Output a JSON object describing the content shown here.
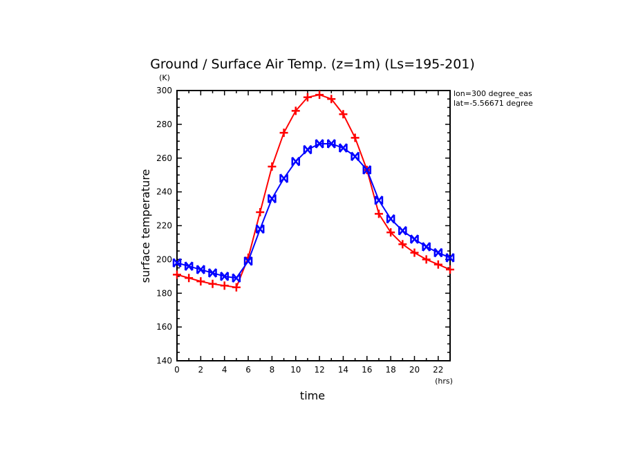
{
  "chart_data": {
    "type": "line",
    "title": "Ground / Surface Air Temp. (z=1m) (Ls=195-201)",
    "xlabel": "time",
    "xunit": "(hrs)",
    "ylabel": "surface temperature",
    "yunit": "(K)",
    "annotations": [
      "lon=300 degree_eas",
      "lat=-5.56671 degree"
    ],
    "xlim": [
      0,
      23
    ],
    "ylim": [
      140,
      300
    ],
    "xticks": [
      0,
      2,
      4,
      6,
      8,
      10,
      12,
      14,
      16,
      18,
      20,
      22
    ],
    "yticks": [
      140,
      160,
      180,
      200,
      220,
      240,
      260,
      280,
      300
    ],
    "grid": false,
    "x": [
      0,
      1,
      2,
      3,
      4,
      5,
      6,
      7,
      8,
      9,
      10,
      11,
      12,
      13,
      14,
      15,
      16,
      17,
      18,
      19,
      20,
      21,
      22,
      23
    ],
    "series": [
      {
        "color": "#ff0000",
        "marker": "plus",
        "values": [
          191,
          189,
          187,
          185.5,
          184.5,
          183.5,
          201,
          228,
          255,
          275,
          288,
          296,
          297.5,
          295,
          286,
          272,
          253,
          227,
          216,
          209,
          204,
          200,
          197,
          194
        ]
      },
      {
        "color": "#0000ff",
        "marker": "x",
        "values": [
          198,
          196,
          194,
          192,
          190,
          189,
          199,
          218,
          236,
          248,
          258,
          265,
          268.5,
          268.5,
          266,
          261,
          253,
          235,
          224,
          217,
          212,
          207.5,
          204,
          201
        ]
      }
    ]
  }
}
